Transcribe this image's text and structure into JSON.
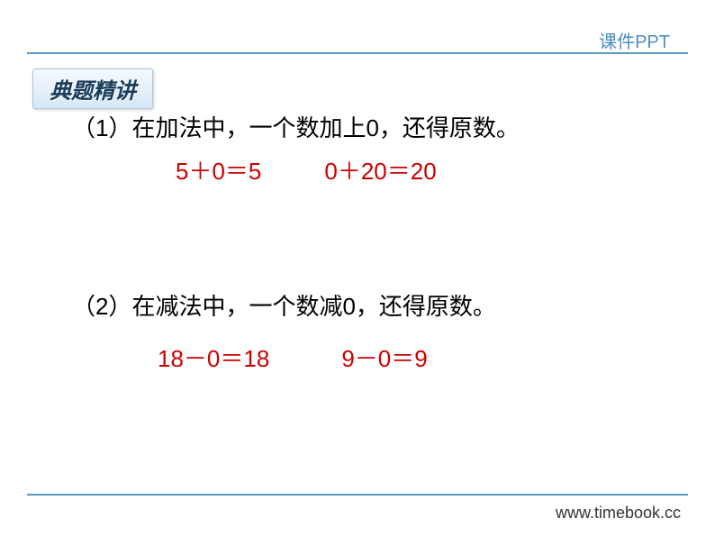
{
  "header": {
    "label": "课件PPT"
  },
  "section": {
    "badge_text": "典题精讲"
  },
  "content": {
    "statement1": "（1）在加法中，一个数加上0，还得原数。",
    "equation1a": "5＋0＝5",
    "equation1b": "0＋20＝20",
    "statement2": "（2）在减法中，一个数减0，还得原数。",
    "equation2a": "18－0＝18",
    "equation2b": "9－0＝9"
  },
  "footer": {
    "url": "www.timebook.cc"
  },
  "style": {
    "accent_color": "#5a9bc4",
    "header_text_color": "#4a8fc7",
    "equation_color": "#cc0000",
    "text_color": "#000000",
    "badge_bg_start": "#f5f9fd",
    "badge_bg_end": "#d5e6f5",
    "badge_text_color": "#1a3d5c",
    "body_fontsize": 26,
    "header_fontsize": 20,
    "badge_fontsize": 24,
    "footer_fontsize": 18
  }
}
